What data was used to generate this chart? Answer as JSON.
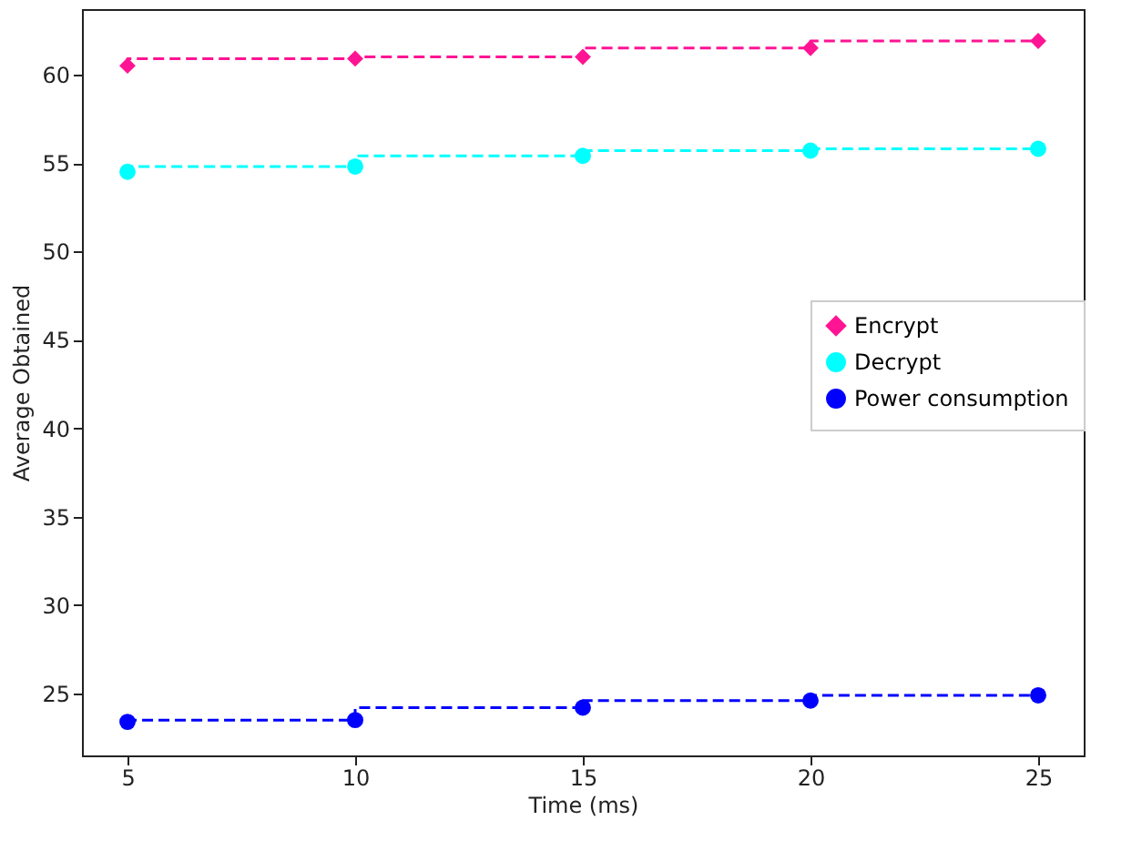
{
  "chart_data": {
    "type": "step",
    "xlabel": "Time (ms)",
    "ylabel": "Average Obtained",
    "x": [
      5,
      10,
      15,
      20,
      25
    ],
    "series": [
      {
        "name": "Encrypt",
        "color": "#ff1493",
        "marker": "diamond",
        "values": [
          60.5,
          60.9,
          61.0,
          61.5,
          61.9
        ]
      },
      {
        "name": "Decrypt",
        "color": "#00ffff",
        "marker": "circle",
        "values": [
          54.5,
          54.8,
          55.4,
          55.7,
          55.8
        ]
      },
      {
        "name": "Power consumption",
        "color": "#0000ff",
        "marker": "circle",
        "values": [
          23.4,
          23.5,
          24.2,
          24.6,
          24.9
        ]
      }
    ],
    "xlim": [
      4,
      26
    ],
    "xticks": [
      5,
      10,
      15,
      20,
      25
    ],
    "ylim": [
      21.5,
      63.7
    ],
    "yticks": [
      25,
      30,
      35,
      40,
      45,
      50,
      55,
      60
    ],
    "line_style": "dashed",
    "grid": false,
    "legend": "right"
  }
}
